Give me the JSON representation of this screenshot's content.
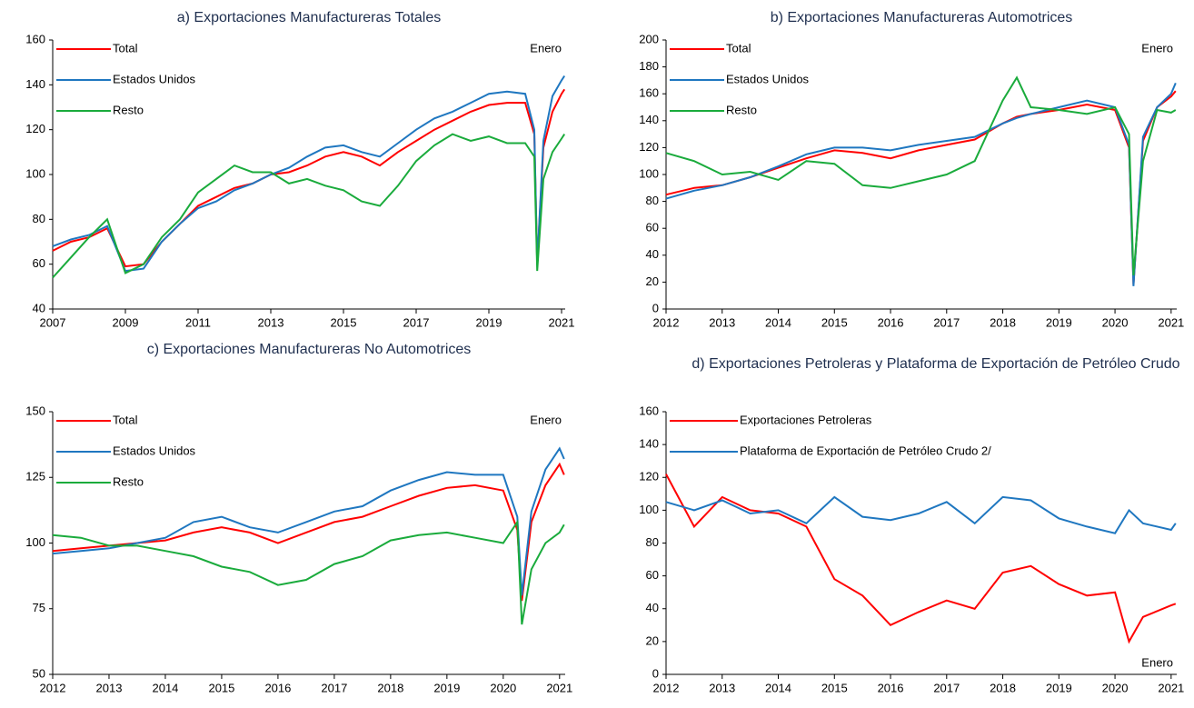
{
  "chart_data": [
    {
      "type": "line",
      "title": "a) Exportaciones Manufactureras Totales",
      "annotation": "Enero",
      "x": [
        2007,
        2007.5,
        2008,
        2008.5,
        2009,
        2009.5,
        2010,
        2010.5,
        2011,
        2011.5,
        2012,
        2012.5,
        2013,
        2013.5,
        2014,
        2014.5,
        2015,
        2015.5,
        2016,
        2016.5,
        2017,
        2017.5,
        2018,
        2018.5,
        2019,
        2019.5,
        2020,
        2020.25,
        2020.33,
        2020.5,
        2020.75,
        2021,
        2021.08
      ],
      "xlim": [
        2007,
        2021.1
      ],
      "xticks": [
        2007,
        2009,
        2011,
        2013,
        2015,
        2017,
        2019,
        2021
      ],
      "ylim": [
        40,
        160
      ],
      "yticks": [
        40,
        60,
        80,
        100,
        120,
        140,
        160
      ],
      "series": [
        {
          "name": "Total",
          "color": "#ff0000",
          "values": [
            66,
            70,
            72,
            76,
            59,
            60,
            70,
            78,
            86,
            90,
            94,
            96,
            100,
            101,
            104,
            108,
            110,
            108,
            104,
            110,
            115,
            120,
            124,
            128,
            131,
            132,
            132,
            118,
            60,
            112,
            128,
            136,
            138
          ]
        },
        {
          "name": "Estados Unidos",
          "color": "#1f77c0",
          "values": [
            68,
            71,
            73,
            77,
            57,
            58,
            70,
            78,
            85,
            88,
            93,
            96,
            100,
            103,
            108,
            112,
            113,
            110,
            108,
            114,
            120,
            125,
            128,
            132,
            136,
            137,
            136,
            120,
            60,
            115,
            135,
            142,
            144
          ]
        },
        {
          "name": "Resto",
          "color": "#1aab3c",
          "values": [
            54,
            63,
            72,
            80,
            56,
            60,
            72,
            80,
            92,
            98,
            104,
            101,
            101,
            96,
            98,
            95,
            93,
            88,
            86,
            95,
            106,
            113,
            118,
            115,
            117,
            114,
            114,
            108,
            57,
            98,
            110,
            116,
            118
          ]
        }
      ]
    },
    {
      "type": "line",
      "title": "b) Exportaciones Manufactureras Automotrices",
      "annotation": "Enero",
      "x": [
        2012,
        2012.5,
        2013,
        2013.5,
        2014,
        2014.5,
        2015,
        2015.5,
        2016,
        2016.5,
        2017,
        2017.5,
        2018,
        2018.25,
        2018.5,
        2019,
        2019.5,
        2020,
        2020.25,
        2020.33,
        2020.5,
        2020.75,
        2021,
        2021.08
      ],
      "xlim": [
        2012,
        2021.1
      ],
      "xticks": [
        2012,
        2013,
        2014,
        2015,
        2016,
        2017,
        2018,
        2019,
        2020,
        2021
      ],
      "ylim": [
        0,
        200
      ],
      "yticks": [
        0,
        20,
        40,
        60,
        80,
        100,
        120,
        140,
        160,
        180,
        200
      ],
      "series": [
        {
          "name": "Total",
          "color": "#ff0000",
          "values": [
            85,
            90,
            92,
            98,
            105,
            112,
            118,
            116,
            112,
            118,
            122,
            126,
            138,
            143,
            145,
            148,
            152,
            148,
            120,
            18,
            125,
            150,
            158,
            162
          ]
        },
        {
          "name": "Estados Unidos",
          "color": "#1f77c0",
          "values": [
            82,
            88,
            92,
            98,
            106,
            115,
            120,
            120,
            118,
            122,
            125,
            128,
            138,
            142,
            145,
            150,
            155,
            150,
            122,
            17,
            128,
            150,
            160,
            168
          ]
        },
        {
          "name": "Resto",
          "color": "#1aab3c",
          "values": [
            116,
            110,
            100,
            102,
            96,
            110,
            108,
            92,
            90,
            95,
            100,
            110,
            155,
            172,
            150,
            148,
            145,
            150,
            130,
            25,
            110,
            148,
            146,
            148
          ]
        }
      ]
    },
    {
      "type": "line",
      "title": "c) Exportaciones Manufactureras No Automotrices",
      "annotation": "Enero",
      "x": [
        2012,
        2012.5,
        2013,
        2013.5,
        2014,
        2014.5,
        2015,
        2015.5,
        2016,
        2016.5,
        2017,
        2017.5,
        2018,
        2018.5,
        2019,
        2019.5,
        2020,
        2020.25,
        2020.33,
        2020.5,
        2020.75,
        2021,
        2021.08
      ],
      "xlim": [
        2012,
        2021.1
      ],
      "xticks": [
        2012,
        2013,
        2014,
        2015,
        2016,
        2017,
        2018,
        2019,
        2020,
        2021
      ],
      "ylim": [
        50,
        150
      ],
      "yticks": [
        50,
        75,
        100,
        125,
        150
      ],
      "series": [
        {
          "name": "Total",
          "color": "#ff0000",
          "values": [
            97,
            98,
            99,
            100,
            101,
            104,
            106,
            104,
            100,
            104,
            108,
            110,
            114,
            118,
            121,
            122,
            120,
            105,
            78,
            108,
            122,
            130,
            126
          ]
        },
        {
          "name": "Estados Unidos",
          "color": "#1f77c0",
          "values": [
            96,
            97,
            98,
            100,
            102,
            108,
            110,
            106,
            104,
            108,
            112,
            114,
            120,
            124,
            127,
            126,
            126,
            110,
            80,
            112,
            128,
            136,
            132
          ]
        },
        {
          "name": "Resto",
          "color": "#1aab3c",
          "values": [
            103,
            102,
            99,
            99,
            97,
            95,
            91,
            89,
            84,
            86,
            92,
            95,
            101,
            103,
            104,
            102,
            100,
            108,
            69,
            90,
            100,
            104,
            107
          ]
        }
      ]
    },
    {
      "type": "line",
      "title": "d) Exportaciones Petroleras y Plataforma de Exportación de Petróleo Crudo",
      "annotation": "Enero",
      "x": [
        2012,
        2012.5,
        2013,
        2013.5,
        2014,
        2014.5,
        2015,
        2015.5,
        2016,
        2016.5,
        2017,
        2017.5,
        2018,
        2018.5,
        2019,
        2019.5,
        2020,
        2020.25,
        2020.5,
        2021,
        2021.08
      ],
      "xlim": [
        2012,
        2021.1
      ],
      "xticks": [
        2012,
        2013,
        2014,
        2015,
        2016,
        2017,
        2018,
        2019,
        2020,
        2021
      ],
      "ylim": [
        0,
        160
      ],
      "yticks": [
        0,
        20,
        40,
        60,
        80,
        100,
        120,
        140,
        160
      ],
      "series": [
        {
          "name": "Exportaciones Petroleras",
          "color": "#ff0000",
          "values": [
            122,
            90,
            108,
            100,
            98,
            90,
            58,
            48,
            30,
            38,
            45,
            40,
            62,
            66,
            55,
            48,
            50,
            20,
            35,
            42,
            43
          ]
        },
        {
          "name": "Plataforma de Exportación de Petróleo Crudo 2/",
          "color": "#1f77c0",
          "values": [
            105,
            100,
            106,
            98,
            100,
            92,
            108,
            96,
            94,
            98,
            105,
            92,
            108,
            106,
            95,
            90,
            86,
            100,
            92,
            88,
            92
          ]
        }
      ]
    }
  ]
}
